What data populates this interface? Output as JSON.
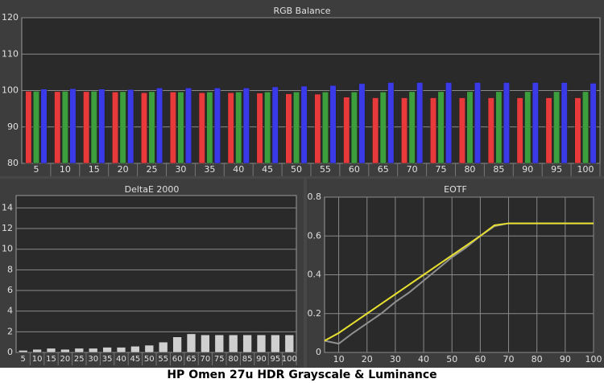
{
  "title": "HP Omen 27u HDR Grayscale & Luminance",
  "chart_data": [
    {
      "type": "bar",
      "title": "RGB Balance",
      "categories": [
        "5",
        "10",
        "15",
        "20",
        "25",
        "30",
        "35",
        "40",
        "45",
        "50",
        "55",
        "60",
        "65",
        "70",
        "75",
        "80",
        "85",
        "90",
        "95",
        "100"
      ],
      "series": [
        {
          "color": "#e83a3a",
          "values": [
            99.8,
            99.7,
            99.7,
            99.6,
            99.4,
            99.6,
            99.4,
            99.4,
            99.3,
            99.1,
            99.0,
            98.2,
            98.0,
            98.0,
            98.0,
            98.0,
            98.0,
            98.0,
            98.0,
            98.0
          ]
        },
        {
          "color": "#3c9e3c",
          "values": [
            99.8,
            99.8,
            99.8,
            99.7,
            99.7,
            99.6,
            99.6,
            99.6,
            99.6,
            99.6,
            99.6,
            99.6,
            99.6,
            99.7,
            99.7,
            99.7,
            99.7,
            99.7,
            99.7,
            99.7
          ]
        },
        {
          "color": "#3a3ae8",
          "values": [
            100.4,
            100.5,
            100.4,
            100.3,
            100.7,
            100.7,
            100.7,
            100.7,
            101.0,
            101.2,
            101.4,
            101.9,
            102.2,
            102.2,
            102.2,
            102.2,
            102.2,
            102.2,
            102.2,
            102.0
          ]
        }
      ],
      "ylim": [
        80,
        120
      ],
      "yticks": [
        80,
        90,
        100,
        110,
        120
      ],
      "grid": true
    },
    {
      "type": "bar",
      "title": "DeltaE 2000",
      "categories": [
        "5",
        "10",
        "15",
        "20",
        "25",
        "30",
        "35",
        "40",
        "45",
        "50",
        "55",
        "60",
        "65",
        "70",
        "75",
        "80",
        "85",
        "90",
        "95",
        "100"
      ],
      "series": [
        {
          "color": "#cfcfcf",
          "values": [
            0.2,
            0.3,
            0.4,
            0.3,
            0.4,
            0.4,
            0.5,
            0.5,
            0.6,
            0.7,
            1.0,
            1.5,
            1.8,
            1.7,
            1.7,
            1.7,
            1.7,
            1.7,
            1.7,
            1.7
          ]
        }
      ],
      "ylim": [
        0,
        15.2
      ],
      "yticks": [
        0,
        2,
        4,
        6,
        8,
        10,
        12,
        14
      ],
      "grid": true
    },
    {
      "type": "line",
      "title": "EOTF",
      "x": [
        5,
        10,
        15,
        20,
        25,
        30,
        35,
        40,
        45,
        50,
        55,
        60,
        65,
        70,
        75,
        80,
        85,
        90,
        95,
        100
      ],
      "series": [
        {
          "color": "#909090",
          "values": [
            0.06,
            0.045,
            0.1,
            0.15,
            0.2,
            0.26,
            0.31,
            0.37,
            0.43,
            0.49,
            0.54,
            0.6,
            0.65,
            0.665,
            0.665,
            0.665,
            0.665,
            0.665,
            0.665,
            0.665
          ]
        },
        {
          "color": "#e8e030",
          "values": [
            0.06,
            0.1,
            0.15,
            0.2,
            0.25,
            0.3,
            0.35,
            0.4,
            0.45,
            0.5,
            0.55,
            0.6,
            0.655,
            0.665,
            0.665,
            0.665,
            0.665,
            0.665,
            0.665,
            0.665
          ]
        }
      ],
      "xlim": [
        5,
        100
      ],
      "xticks": [
        10,
        20,
        30,
        40,
        50,
        60,
        70,
        80,
        90,
        100
      ],
      "ylim": [
        0,
        0.8
      ],
      "yticks": [
        0,
        0.2,
        0.4,
        0.6,
        0.8
      ],
      "grid": true
    }
  ]
}
